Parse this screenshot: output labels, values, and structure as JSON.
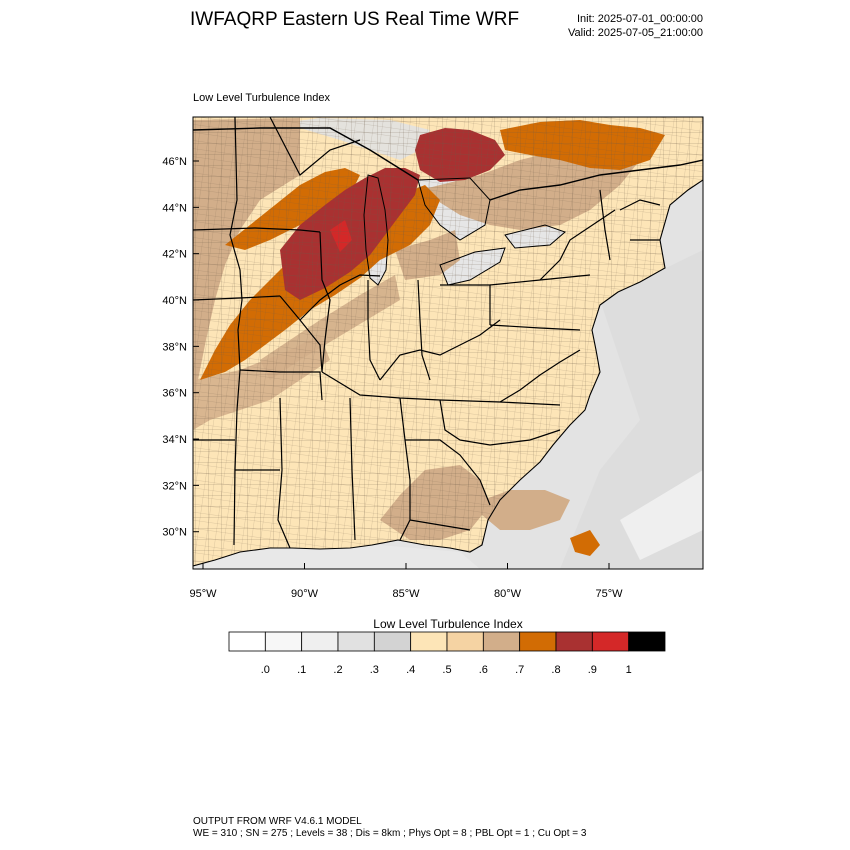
{
  "header": {
    "title": "IWFAQRP Eastern US Real Time WRF",
    "init": "Init: 2025-07-01_00:00:00",
    "valid": "Valid: 2025-07-05_21:00:00"
  },
  "panel": {
    "subtitle": "Low Level Turbulence Index",
    "lat_ticks": [
      {
        "lat": 46,
        "label": "46°N"
      },
      {
        "lat": 44,
        "label": "44°N"
      },
      {
        "lat": 42,
        "label": "42°N"
      },
      {
        "lat": 40,
        "label": "40°N"
      },
      {
        "lat": 38,
        "label": "38°N"
      },
      {
        "lat": 36,
        "label": "36°N"
      },
      {
        "lat": 34,
        "label": "34°N"
      },
      {
        "lat": 32,
        "label": "32°N"
      },
      {
        "lat": 30,
        "label": "30°N"
      }
    ],
    "lon_ticks": [
      {
        "lon": -95,
        "label": "95°W"
      },
      {
        "lon": -90,
        "label": "90°W"
      },
      {
        "lon": -85,
        "label": "85°W"
      },
      {
        "lon": -80,
        "label": "80°W"
      },
      {
        "lon": -75,
        "label": "75°W"
      }
    ]
  },
  "colorbar": {
    "title": "Low Level Turbulence Index",
    "colors": [
      "#ffffff",
      "#f7f7f7",
      "#efefef",
      "#e1e1e1",
      "#d3d3d3",
      "#fde5b7",
      "#f5d3a3",
      "#d2ae8a",
      "#d26c04",
      "#a93131",
      "#d42828",
      "#000000"
    ],
    "labels": [
      ".0",
      ".1",
      ".2",
      ".3",
      ".4",
      ".5",
      ".6",
      ".7",
      ".8",
      ".9",
      "1"
    ]
  },
  "footer": {
    "line1": "OUTPUT FROM WRF V4.6.1 MODEL",
    "line2": "WE = 310 ; SN = 275 ; Levels = 38 ; Dis = 8km ; Phys Opt = 8 ; PBL Opt = 1 ; Cu Opt = 3"
  }
}
